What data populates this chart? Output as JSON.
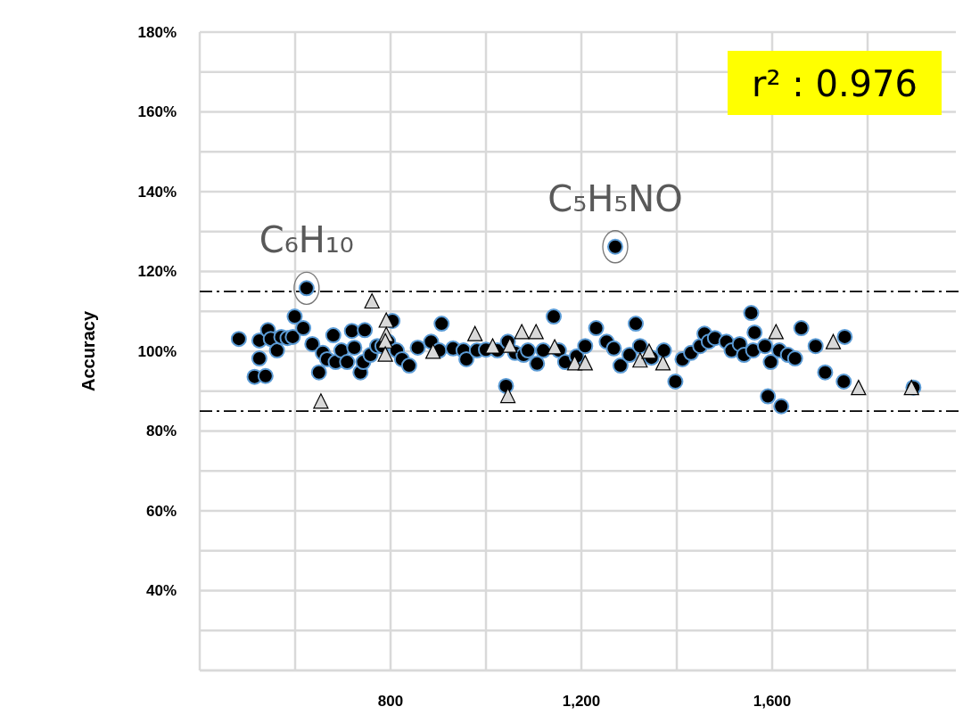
{
  "chart_data": {
    "type": "scatter",
    "ylabel": "Accuracy",
    "xlim": [
      400,
      1985
    ],
    "ylim": [
      20,
      180
    ],
    "xticks": [
      {
        "value": 400,
        "label": null
      },
      {
        "value": 600,
        "label": null
      },
      800,
      {
        "value": 1000,
        "label": null
      },
      {
        "value": 1200,
        "label": "1,200"
      },
      {
        "value": 1400,
        "label": null
      },
      {
        "value": 1600,
        "label": "1,600"
      },
      {
        "value": 1800,
        "label": null
      }
    ],
    "yticks": [
      {
        "value": 20,
        "label": null
      },
      {
        "value": 30,
        "label": null
      },
      {
        "value": 40,
        "label": "40%"
      },
      {
        "value": 50,
        "label": null
      },
      {
        "value": 60,
        "label": "60%"
      },
      {
        "value": 70,
        "label": null
      },
      {
        "value": 80,
        "label": "80%"
      },
      {
        "value": 90,
        "label": null
      },
      {
        "value": 100,
        "label": "100%"
      },
      {
        "value": 110,
        "label": null
      },
      {
        "value": 120,
        "label": "120%"
      },
      {
        "value": 130,
        "label": null
      },
      {
        "value": 140,
        "label": "140%"
      },
      {
        "value": 150,
        "label": null
      },
      {
        "value": 160,
        "label": "160%"
      },
      {
        "value": 170,
        "label": null
      },
      {
        "value": 180,
        "label": "180%"
      }
    ],
    "grid": true,
    "series": [
      {
        "color": "#000000",
        "marker": "circle",
        "x": [
          482,
          515,
          525,
          538,
          525,
          543,
          549,
          562,
          571,
          584,
          599,
          595,
          617,
          624,
          636,
          650,
          658,
          667,
          680,
          685,
          697,
          709,
          719,
          724,
          737,
          743,
          746,
          758,
          772,
          783,
          804,
          795,
          813,
          824,
          839,
          857,
          885,
          907,
          902,
          931,
          953,
          959,
          981,
          1000,
          1024,
          1042,
          1046,
          1061,
          1079,
          1088,
          1107,
          1120,
          1142,
          1153,
          1166,
          1190,
          1208,
          1231,
          1253,
          1268,
          1282,
          1301,
          1314,
          1323,
          1347,
          1373,
          1397,
          1412,
          1430,
          1449,
          1458,
          1467,
          1480,
          1504,
          1515,
          1532,
          1541,
          1556,
          1563,
          1560,
          1585,
          1591,
          1597,
          1615,
          1619,
          1633,
          1648,
          1661,
          1691,
          1711,
          1750,
          1752,
          1271,
          1896
        ],
        "values": [
          103.1,
          93.6,
          98.2,
          93.8,
          102.7,
          105.3,
          103.1,
          100.2,
          103.6,
          103.3,
          108.7,
          103.6,
          105.8,
          115.8,
          101.8,
          94.7,
          99.6,
          98,
          104,
          97.3,
          100.2,
          97.3,
          105.1,
          100.9,
          94.7,
          97.3,
          105.3,
          99.1,
          101.3,
          101.3,
          107.6,
          102.4,
          100.2,
          98,
          96.4,
          100.9,
          102.4,
          106.9,
          100.2,
          100.7,
          100.2,
          98,
          100.2,
          100.4,
          100.2,
          91.3,
          102.4,
          99.6,
          99.1,
          100.2,
          96.9,
          100.2,
          108.7,
          100.2,
          97.3,
          98.7,
          101.3,
          105.8,
          102.4,
          100.7,
          96.4,
          99.1,
          106.9,
          101.3,
          98.4,
          100.2,
          92.4,
          98,
          99.6,
          101.3,
          104.4,
          102.4,
          103.3,
          102.4,
          100.2,
          101.8,
          99.1,
          109.6,
          104.7,
          100.2,
          101.3,
          88.7,
          97.3,
          100.2,
          86.2,
          99.1,
          98.2,
          105.8,
          101.3,
          94.7,
          92.4,
          103.6,
          126.2,
          90.9
        ]
      },
      {
        "color": "#d9d9d9",
        "marker": "triangle",
        "x": [
          654,
          761,
          791,
          791,
          789,
          789,
          889,
          977,
          1014,
          1046,
          1050,
          1075,
          1105,
          1144,
          1186,
          1208,
          1323,
          1342,
          1371,
          1608,
          1728,
          1781,
          1892
        ],
        "values": [
          87.3,
          112.4,
          107.6,
          104,
          102.4,
          99.1,
          99.8,
          104.2,
          101.1,
          88.7,
          101.3,
          104.7,
          104.7,
          100.9,
          96.9,
          96.9,
          97.6,
          99.8,
          96.9,
          104.7,
          102.2,
          90.7,
          90.7
        ]
      }
    ],
    "ref_lines": [
      {
        "axis": "y",
        "value": 115,
        "color": "#000000",
        "line_style": "dashed"
      },
      {
        "axis": "y",
        "value": 85,
        "color": "#000000",
        "line_style": "dashed"
      }
    ],
    "annotations": [
      {
        "text": "C₆H₁₀",
        "x": 624,
        "y": 115.8
      },
      {
        "text": "C₅H₅NO",
        "x": 1271,
        "y": 126.2
      },
      "r² : 0.976"
    ]
  }
}
